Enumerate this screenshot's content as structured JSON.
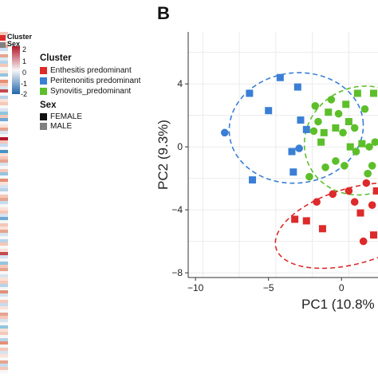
{
  "panel_label": "B",
  "heatmap": {
    "annotation_rows": [
      "Cluster",
      "Sex"
    ],
    "colorbar_ticks": [
      "2",
      "1",
      "0",
      "-1",
      "-2"
    ],
    "colors": [
      "#f4c7b8",
      "#d6e4f0",
      "#f7f7f7",
      "#fbe1d6",
      "#e8aa95",
      "#c7dcef",
      "#f7f7f7",
      "#e6a48e",
      "#dbe9f5",
      "#b6d3e9",
      "#f4c7b8",
      "#f7f7f7",
      "#fbe1d6",
      "#92c5de",
      "#f7f7f7",
      "#e48f76",
      "#f4c7b8",
      "#d6e4f0",
      "#c44a4f",
      "#f7f7f7",
      "#b6d3e9",
      "#fbe1d6",
      "#f4c7b8",
      "#f7f7f7",
      "#d6e4f0",
      "#92c5de",
      "#f4c7b8",
      "#6fa8d3",
      "#f7f7f7",
      "#fbe1d6",
      "#e6a48e",
      "#d6e4f0",
      "#f7f7f7",
      "#b2182b",
      "#f4c7b8",
      "#c7dcef",
      "#f7f7f7",
      "#4393c3",
      "#fbe1d6",
      "#f4c7b8",
      "#e6a48e",
      "#d6e4f0",
      "#f7f7f7",
      "#f4c7b8",
      "#92c5de",
      "#f7f7f7",
      "#e48f76",
      "#fbe1d6",
      "#d6e4f0",
      "#b6d3e9",
      "#f7f7f7",
      "#f4c7b8",
      "#e6a48e",
      "#c7dcef",
      "#f7f7f7",
      "#fbe1d6",
      "#f4c7b8",
      "#d6e4f0",
      "#6fa8d3",
      "#f7f7f7",
      "#f4c7b8",
      "#fbe1d6",
      "#e6a48e",
      "#d6e4f0",
      "#f7f7f7",
      "#b6d3e9",
      "#f4c7b8",
      "#f7f7f7",
      "#fbe1d6",
      "#c44a4f",
      "#d6e4f0",
      "#f7f7f7",
      "#92c5de",
      "#f4c7b8",
      "#e6a48e",
      "#f7f7f7",
      "#d6e4f0",
      "#fbe1d6",
      "#f4c7b8",
      "#b6d3e9",
      "#f7f7f7",
      "#e48f76",
      "#d6e4f0",
      "#f7f7f7",
      "#f4c7b8",
      "#c7dcef",
      "#fbe1d6",
      "#f7f7f7",
      "#e6a48e",
      "#f4c7b8",
      "#d6e4f0",
      "#f7f7f7",
      "#92c5de",
      "#fbe1d6",
      "#f4c7b8",
      "#f7f7f7",
      "#b6d3e9",
      "#e48f76",
      "#f7f7f7",
      "#f4c7b8",
      "#d6e4f0",
      "#fbe1d6",
      "#f7f7f7",
      "#e6a48e",
      "#c7dcef",
      "#f4c7b8",
      "#f7f7f7"
    ]
  },
  "legend": {
    "cluster_title": "Cluster",
    "cluster_items": [
      {
        "label": "Enthesitis predominant",
        "color": "#dd2a2a"
      },
      {
        "label": "Peritenonitis predominant",
        "color": "#3a7fd5"
      },
      {
        "label": "Synovitis_predominant",
        "color": "#5cbf2a"
      }
    ],
    "sex_title": "Sex",
    "sex_items": [
      {
        "label": "FEMALE",
        "color": "#111111"
      },
      {
        "label": "MALE",
        "color": "#808080"
      }
    ]
  },
  "chart_data": {
    "type": "scatter",
    "xlabel": "PC1 (10.8%",
    "ylabel": "PC2 (9.3%)",
    "xlim": [
      -10.5,
      2.5
    ],
    "ylim": [
      -8.3,
      7.3
    ],
    "xticks": [
      -10,
      -5,
      0
    ],
    "yticks": [
      4,
      0,
      -4,
      -8
    ],
    "grid": true,
    "series": [
      {
        "color": "#3a7fd5",
        "points": [
          {
            "x": -8,
            "y": 0.9,
            "shape": "circle"
          },
          {
            "x": -6.3,
            "y": 3.4,
            "shape": "square"
          },
          {
            "x": -5,
            "y": 2.3,
            "shape": "square"
          },
          {
            "x": -4.2,
            "y": 4.4,
            "shape": "square"
          },
          {
            "x": -3,
            "y": 3.8,
            "shape": "square"
          },
          {
            "x": -6.1,
            "y": -2.1,
            "shape": "square"
          },
          {
            "x": -2.9,
            "y": -0.1,
            "shape": "circle"
          },
          {
            "x": -3.4,
            "y": -0.3,
            "shape": "square"
          },
          {
            "x": -3.3,
            "y": -1.6,
            "shape": "square"
          },
          {
            "x": -2.8,
            "y": 1.7,
            "shape": "square"
          },
          {
            "x": -2.4,
            "y": 1.1,
            "shape": "square"
          }
        ]
      },
      {
        "color": "#5cbf2a",
        "points": [
          {
            "x": -1.8,
            "y": 2.6,
            "shape": "circle"
          },
          {
            "x": -1.6,
            "y": 1.6,
            "shape": "circle"
          },
          {
            "x": -1.2,
            "y": 0.9,
            "shape": "square"
          },
          {
            "x": -0.9,
            "y": 2.2,
            "shape": "square"
          },
          {
            "x": -0.7,
            "y": 3.0,
            "shape": "circle"
          },
          {
            "x": -0.4,
            "y": 1.2,
            "shape": "square"
          },
          {
            "x": -0.2,
            "y": 2.1,
            "shape": "circle"
          },
          {
            "x": 0.1,
            "y": 0.9,
            "shape": "circle"
          },
          {
            "x": 0.3,
            "y": 2.7,
            "shape": "square"
          },
          {
            "x": 0.5,
            "y": 1.6,
            "shape": "square"
          },
          {
            "x": 0.6,
            "y": 0.0,
            "shape": "square"
          },
          {
            "x": 0.9,
            "y": 1.2,
            "shape": "circle"
          },
          {
            "x": 1.1,
            "y": 3.4,
            "shape": "square"
          },
          {
            "x": 1.4,
            "y": 0.2,
            "shape": "square"
          },
          {
            "x": 1.6,
            "y": 2.4,
            "shape": "circle"
          },
          {
            "x": 1.9,
            "y": 0.0,
            "shape": "circle"
          },
          {
            "x": 2.2,
            "y": 3.4,
            "shape": "square"
          },
          {
            "x": -1.9,
            "y": 1.0,
            "shape": "circle"
          },
          {
            "x": -2.2,
            "y": -1.9,
            "shape": "circle"
          },
          {
            "x": -1.1,
            "y": -1.3,
            "shape": "circle"
          },
          {
            "x": -0.4,
            "y": -0.9,
            "shape": "circle"
          },
          {
            "x": 0.2,
            "y": -1.2,
            "shape": "circle"
          },
          {
            "x": 1.0,
            "y": -0.3,
            "shape": "circle"
          },
          {
            "x": 1.8,
            "y": -1.7,
            "shape": "circle"
          },
          {
            "x": 2.1,
            "y": -1.2,
            "shape": "circle"
          },
          {
            "x": -1.4,
            "y": 0.3,
            "shape": "square"
          },
          {
            "x": 2.3,
            "y": 0.3,
            "shape": "circle"
          }
        ]
      },
      {
        "color": "#dd2a2a",
        "points": [
          {
            "x": -3.2,
            "y": -4.6,
            "shape": "square"
          },
          {
            "x": -2.4,
            "y": -4.7,
            "shape": "square"
          },
          {
            "x": -1.3,
            "y": -5.2,
            "shape": "square"
          },
          {
            "x": -1.7,
            "y": -3.5,
            "shape": "circle"
          },
          {
            "x": -0.6,
            "y": -3.0,
            "shape": "circle"
          },
          {
            "x": 0.5,
            "y": -2.8,
            "shape": "circle"
          },
          {
            "x": 1.7,
            "y": -2.3,
            "shape": "circle"
          },
          {
            "x": 1.3,
            "y": -4.2,
            "shape": "square"
          },
          {
            "x": 2.1,
            "y": -3.7,
            "shape": "circle"
          },
          {
            "x": 1.5,
            "y": -6.0,
            "shape": "circle"
          },
          {
            "x": 2.2,
            "y": -5.6,
            "shape": "square"
          },
          {
            "x": 0.9,
            "y": -3.5,
            "shape": "circle"
          },
          {
            "x": 2.4,
            "y": -2.8,
            "shape": "square"
          }
        ]
      }
    ],
    "ellipses": [
      {
        "color": "#3a7fd5",
        "cx": -3.1,
        "cy": 1.2,
        "rx": 4.6,
        "ry": 3.5,
        "angle_deg": 6
      },
      {
        "color": "#5cbf2a",
        "cx": 1.4,
        "cy": 0.4,
        "rx": 4.0,
        "ry": 3.4,
        "angle_deg": 25
      },
      {
        "color": "#dd2a2a",
        "cx": 0.9,
        "cy": -5.0,
        "rx": 5.6,
        "ry": 2.4,
        "angle_deg": 16
      }
    ]
  }
}
